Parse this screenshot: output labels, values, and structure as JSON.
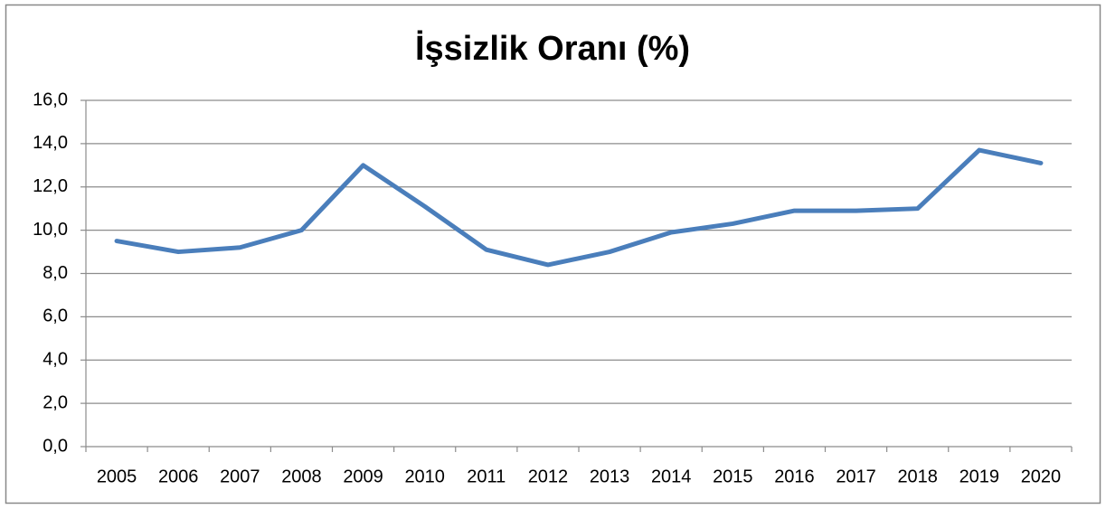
{
  "chart_data": {
    "type": "line",
    "title": "İşsizlik Oranı (%)",
    "categories": [
      "2005",
      "2006",
      "2007",
      "2008",
      "2009",
      "2010",
      "2011",
      "2012",
      "2013",
      "2014",
      "2015",
      "2016",
      "2017",
      "2018",
      "2019",
      "2020"
    ],
    "series": [
      {
        "name": "İşsizlik Oranı",
        "color": "#4a7ebb",
        "values": [
          9.5,
          9.0,
          9.2,
          10.0,
          13.0,
          11.1,
          9.1,
          8.4,
          9.0,
          9.9,
          10.3,
          10.9,
          10.9,
          11.0,
          13.7,
          13.1
        ]
      }
    ],
    "ylim": [
      0,
      16
    ],
    "yticks": [
      {
        "value": 0,
        "label": "0,0"
      },
      {
        "value": 2,
        "label": "2,0"
      },
      {
        "value": 4,
        "label": "4,0"
      },
      {
        "value": 6,
        "label": "6,0"
      },
      {
        "value": 8,
        "label": "8,0"
      },
      {
        "value": 10,
        "label": "10,0"
      },
      {
        "value": 12,
        "label": "12,0"
      },
      {
        "value": 14,
        "label": "14,0"
      },
      {
        "value": 16,
        "label": "16,0"
      }
    ],
    "grid": true
  }
}
